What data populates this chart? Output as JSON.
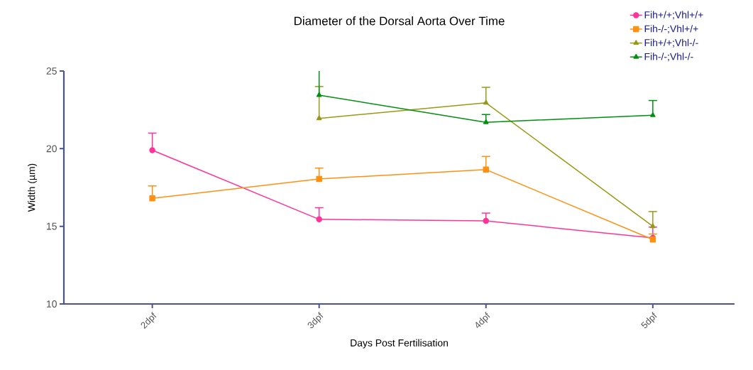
{
  "chart_data": {
    "type": "line",
    "title": "Diameter of the Dorsal Aorta Over Time",
    "xlabel": "Days Post Fertilisation",
    "ylabel": "Width (µm)",
    "categories": [
      "2dpf",
      "3dpf",
      "4dpf",
      "5dpf"
    ],
    "ylim": [
      10,
      25
    ],
    "yticks": [
      10,
      15,
      20,
      25
    ],
    "grid": false,
    "legend": "top right",
    "series": [
      {
        "name": "Fih+/+;Vhl+/+",
        "color": "#ff3399",
        "marker": "circle",
        "values": [
          19.9,
          15.45,
          15.35,
          14.25
        ],
        "errors": [
          [
            19.9,
            21.0
          ],
          [
            15.45,
            16.2
          ],
          [
            15.35,
            15.85
          ],
          [
            14.25,
            14.95
          ]
        ]
      },
      {
        "name": "Fih-/-;Vhl+/+",
        "color": "#ff9010",
        "marker": "square",
        "values": [
          16.8,
          18.05,
          18.65,
          14.15
        ],
        "errors": [
          [
            16.8,
            17.6
          ],
          [
            18.05,
            18.75
          ],
          [
            18.65,
            19.5
          ],
          [
            14.15,
            14.5
          ]
        ]
      },
      {
        "name": "Fih+/+;Vhl-/-",
        "color": "#999915",
        "marker": "triangle",
        "values": [
          null,
          21.95,
          22.95,
          15.0
        ],
        "errors": [
          null,
          [
            21.95,
            24.0
          ],
          [
            22.95,
            23.95
          ],
          [
            15.0,
            15.95
          ]
        ]
      },
      {
        "name": "Fih-/-;Vhl-/-",
        "color": "#008f10",
        "marker": "triangle",
        "values": [
          null,
          23.45,
          21.7,
          22.15
        ],
        "errors": [
          null,
          [
            23.45,
            25.0
          ],
          [
            21.7,
            22.2
          ],
          [
            22.15,
            23.1
          ]
        ]
      }
    ]
  }
}
